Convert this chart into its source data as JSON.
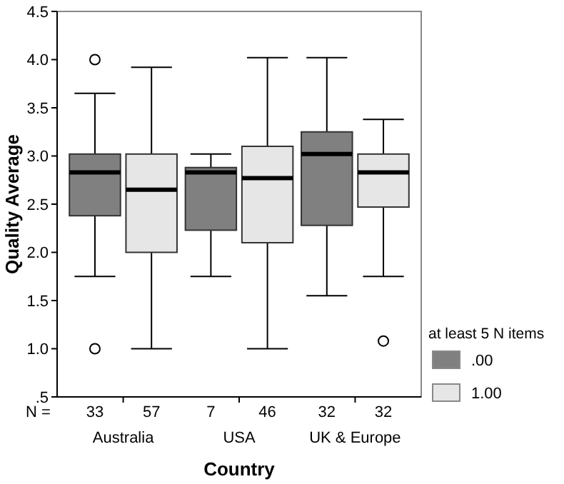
{
  "chart_data": {
    "type": "box",
    "xlabel": "Country",
    "ylabel": "Quality Average",
    "legend_title": "at least 5 N items",
    "legend": "right",
    "categories": [
      "Australia",
      "USA",
      "UK & Europe"
    ],
    "ylim": [
      0.5,
      4.5
    ],
    "yticks": [
      {
        "value": 0.5,
        "label": ".5"
      },
      {
        "value": 1,
        "label": "1.0"
      },
      {
        "value": 1.5,
        "label": "1.5"
      },
      {
        "value": 2,
        "label": "2.0"
      },
      {
        "value": 2.5,
        "label": "2.5"
      },
      {
        "value": 3,
        "label": "3.0"
      },
      {
        "value": 3.5,
        "label": "3.5"
      },
      {
        "value": 4,
        "label": "4.0"
      },
      {
        "value": 4.5,
        "label": "4.5"
      }
    ],
    "grid": false,
    "series": [
      {
        "name": ".00",
        "color": "#808080",
        "boxes": [
          {
            "low": 1.75,
            "q1": 2.38,
            "median": 2.83,
            "q3": 3.02,
            "high": 3.65,
            "outliers": [
              4.0,
              1.0
            ]
          },
          {
            "low": 1.75,
            "q1": 2.23,
            "median": 2.83,
            "q3": 2.88,
            "high": 3.02
          },
          {
            "low": 1.55,
            "q1": 2.28,
            "median": 3.02,
            "q3": 3.25,
            "high": 4.02
          }
        ]
      },
      {
        "name": "1.00",
        "color": "#e6e6e6",
        "boxes": [
          {
            "low": 1.0,
            "q1": 2.0,
            "median": 2.65,
            "q3": 3.02,
            "high": 3.92
          },
          {
            "low": 1.0,
            "q1": 2.1,
            "median": 2.77,
            "q3": 3.1,
            "high": 4.02
          },
          {
            "low": 1.75,
            "q1": 2.47,
            "median": 2.83,
            "q3": 3.02,
            "high": 3.38,
            "outliers": [
              1.08
            ]
          }
        ]
      }
    ],
    "annotations": [
      "N =",
      "33",
      "57",
      "7",
      "46",
      "32",
      "32"
    ]
  }
}
